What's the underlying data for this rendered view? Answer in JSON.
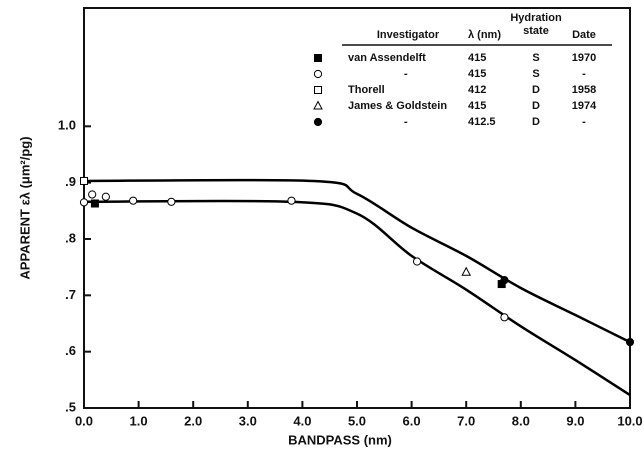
{
  "chart_data": {
    "type": "scatter",
    "xlabel": "BANDPASS (nm)",
    "ylabel": "APPARENT ελ (μm²/pg)",
    "xlim": [
      0,
      10
    ],
    "ylim": [
      0.5,
      1.21
    ],
    "xticks": [
      {
        "value": 0,
        "label": "0.0"
      },
      {
        "value": 1,
        "label": "1.0"
      },
      {
        "value": 2,
        "label": "2.0"
      },
      {
        "value": 3,
        "label": "3.0"
      },
      {
        "value": 4,
        "label": "4.0"
      },
      {
        "value": 5,
        "label": "5.0"
      },
      {
        "value": 6,
        "label": "6.0"
      },
      {
        "value": 7,
        "label": "7.0"
      },
      {
        "value": 8,
        "label": "8.0"
      },
      {
        "value": 9,
        "label": "9.0"
      },
      {
        "value": 10,
        "label": "10.0"
      }
    ],
    "yticks": [
      {
        "value": 0.5,
        "label": ".5"
      },
      {
        "value": 0.6,
        "label": ".6"
      },
      {
        "value": 0.7,
        "label": ".7"
      },
      {
        "value": 0.8,
        "label": ".8"
      },
      {
        "value": 0.9,
        "label": ".9"
      },
      {
        "value": 1.0,
        "label": "1.0"
      }
    ],
    "legend_headers": [
      "Investigator",
      "λ (nm)",
      "Hydration state",
      "Date"
    ],
    "series": [
      {
        "name": "van Assendelft",
        "wavelength": "415",
        "hydration": "S",
        "date": "1970",
        "marker": "square-filled",
        "color": "#000000",
        "x": [
          0.2,
          7.65
        ],
        "values": [
          0.863,
          0.72
        ]
      },
      {
        "name": "-",
        "wavelength": "415",
        "hydration": "S",
        "date": "-",
        "marker": "circle-open",
        "color": "#000000",
        "x": [
          0,
          0.15,
          0.4,
          0.9,
          1.6,
          3.8,
          6.1,
          7.7
        ],
        "values": [
          0.865,
          0.879,
          0.875,
          0.868,
          0.866,
          0.868,
          0.76,
          0.661
        ]
      },
      {
        "name": "Thorell",
        "wavelength": "412",
        "hydration": "D",
        "date": "1958",
        "marker": "square-open",
        "color": "#000000",
        "x": [
          0.0
        ],
        "values": [
          0.903
        ]
      },
      {
        "name": "James & Goldstein",
        "wavelength": "415",
        "hydration": "D",
        "date": "1974",
        "marker": "triangle-open",
        "color": "#000000",
        "x": [
          7.0
        ],
        "values": [
          0.741
        ]
      },
      {
        "name": "-",
        "wavelength": "412.5",
        "hydration": "D",
        "date": "-",
        "marker": "circle-filled",
        "color": "#000000",
        "x": [
          7.7,
          10
        ],
        "values": [
          0.727,
          0.617
        ]
      }
    ],
    "curves": [
      {
        "color": "#000000",
        "x": [
          0,
          4.2,
          5,
          6,
          7,
          8,
          9,
          10
        ],
        "values": [
          0.903,
          0.903,
          0.88,
          0.82,
          0.77,
          0.713,
          0.665,
          0.617
        ]
      },
      {
        "color": "#000000",
        "x": [
          0,
          3.8,
          5,
          6,
          7,
          8,
          9,
          10
        ],
        "values": [
          0.866,
          0.866,
          0.845,
          0.77,
          0.71,
          0.645,
          0.585,
          0.523
        ]
      }
    ]
  }
}
